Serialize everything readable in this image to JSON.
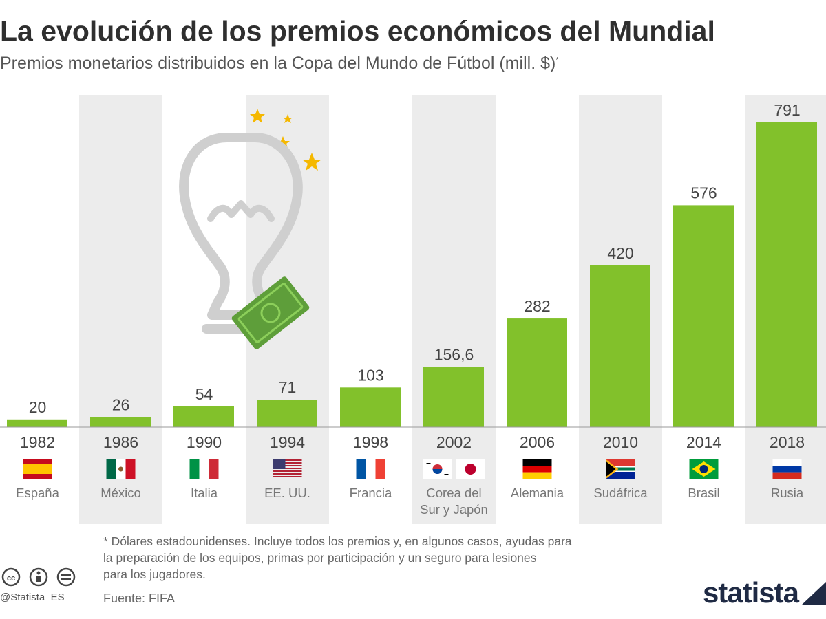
{
  "header": {
    "title": "La evolución de los premios económicos del Mundial",
    "subtitle": "Premios monetarios distribuidos en la Copa del Mundo de Fútbol (mill. $)",
    "subtitle_mark": "*"
  },
  "chart_data": {
    "type": "bar",
    "categories": [
      "1982",
      "1986",
      "1990",
      "1994",
      "1998",
      "2002",
      "2006",
      "2010",
      "2014",
      "2018"
    ],
    "values": [
      20,
      26,
      54,
      71,
      103,
      156.6,
      282,
      420,
      576,
      791
    ],
    "value_labels": [
      "20",
      "26",
      "54",
      "71",
      "103",
      "156,6",
      "282",
      "420",
      "576",
      "791"
    ],
    "hosts": [
      "España",
      "México",
      "Italia",
      "EE. UU.",
      "Francia",
      "Corea del Sur y Japón",
      "Alemania",
      "Sudáfrica",
      "Brasil",
      "Rusia"
    ],
    "host_lines": [
      [
        "España"
      ],
      [
        "México"
      ],
      [
        "Italia"
      ],
      [
        "EE. UU."
      ],
      [
        "Francia"
      ],
      [
        "Corea del",
        "Sur y Japón"
      ],
      [
        "Alemania"
      ],
      [
        "Sudáfrica"
      ],
      [
        "Brasil"
      ],
      [
        "Rusia"
      ]
    ],
    "flags": [
      [
        "spain"
      ],
      [
        "mexico"
      ],
      [
        "italy"
      ],
      [
        "usa"
      ],
      [
        "france"
      ],
      [
        "korea",
        "japan"
      ],
      [
        "germany"
      ],
      [
        "south-africa"
      ],
      [
        "brazil"
      ],
      [
        "russia"
      ]
    ],
    "shaded_columns": [
      1,
      3,
      5,
      7,
      9
    ],
    "ylim": [
      0,
      800
    ],
    "bar_color": "#82c12b",
    "shade_color": "#ececec"
  },
  "footnote": {
    "lines": [
      "* Dólares estadounidenses. Incluye todos los premios y, en algunos casos, ayudas para",
      "la preparación de los equipos, primas por participación y un seguro para lesiones",
      "para los jugadores."
    ]
  },
  "source": "Fuente: FIFA",
  "handle": "@Statista_ES",
  "brand": {
    "name": "statista",
    "color": "#1f2a44"
  }
}
